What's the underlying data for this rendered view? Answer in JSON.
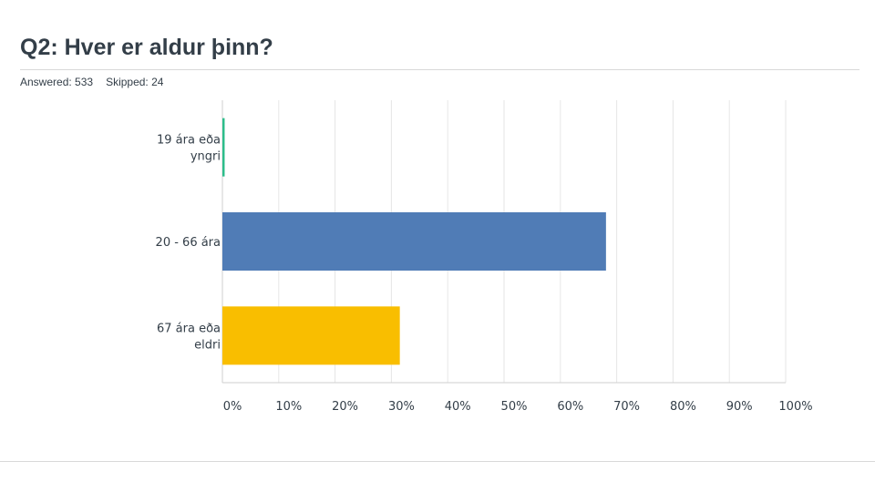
{
  "header": {
    "title": "Q2: Hver er aldur þinn?",
    "answered_label": "Answered: 533",
    "skipped_label": "Skipped: 24"
  },
  "chart_data": {
    "type": "bar",
    "orientation": "horizontal",
    "categories": [
      [
        "19 ára eða",
        "yngri"
      ],
      [
        "20 - 66 ára"
      ],
      [
        "67 ára eða",
        "eldri"
      ]
    ],
    "values": [
      0.4,
      68.1,
      31.5
    ],
    "colors": [
      "#2dbd8b",
      "#507cb6",
      "#f9be00"
    ],
    "xlim": [
      0,
      100
    ],
    "xticks": [
      "0%",
      "10%",
      "20%",
      "30%",
      "40%",
      "50%",
      "60%",
      "70%",
      "80%",
      "90%",
      "100%"
    ],
    "grid": true
  }
}
